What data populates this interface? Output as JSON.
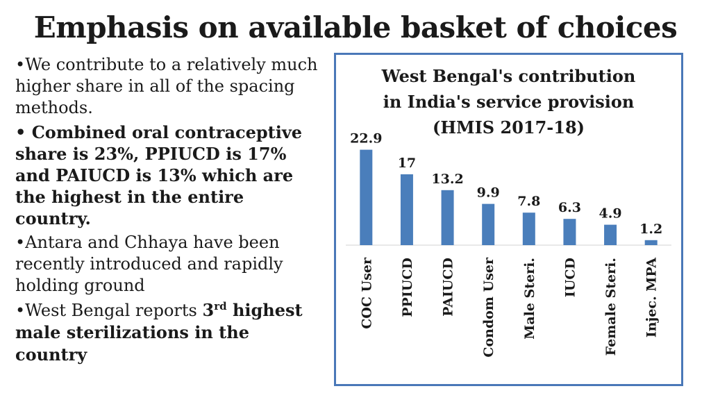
{
  "slide": {
    "title": "Emphasis on available basket of choices",
    "bullets": [
      {
        "bullet": "•",
        "text": "We contribute to a relatively much higher share in all of the spacing methods."
      },
      {
        "bullet": "• ",
        "text": "Combined oral contraceptive share is 23%, PPIUCD is 17% and PAIUCD is 13% which are the highest in the entire country."
      },
      {
        "bullet": "•",
        "text": "Antara and  Chhaya have been recently introduced and rapidly holding ground"
      },
      {
        "bullet": "•",
        "text_pre": "West Bengal reports ",
        "bold_pre": "3",
        "sup": "rd",
        "bold_post": " highest male sterilizations in the country"
      }
    ]
  },
  "chart_data": {
    "type": "bar",
    "title": "West Bengal's contribution in India's service provision (HMIS 2017-18)",
    "title_lines": [
      "West Bengal's contribution",
      "in India's service provision",
      "(HMIS 2017-18)"
    ],
    "categories": [
      "COC User",
      "PPIUCD",
      "PAIUCD",
      "Condom User",
      "Male Steri.",
      "IUCD",
      "Female Steri.",
      "Injec. MPA"
    ],
    "values": [
      22.9,
      17,
      13.2,
      9.9,
      7.8,
      6.3,
      4.9,
      1.2
    ],
    "value_labels": [
      "22.9",
      "17",
      "13.2",
      "9.9",
      "7.8",
      "6.3",
      "4.9",
      "1.2"
    ],
    "ylim": [
      0,
      25
    ],
    "xlabel": "",
    "ylabel": "",
    "grid": false,
    "bar_color": "#4a7ebb"
  }
}
